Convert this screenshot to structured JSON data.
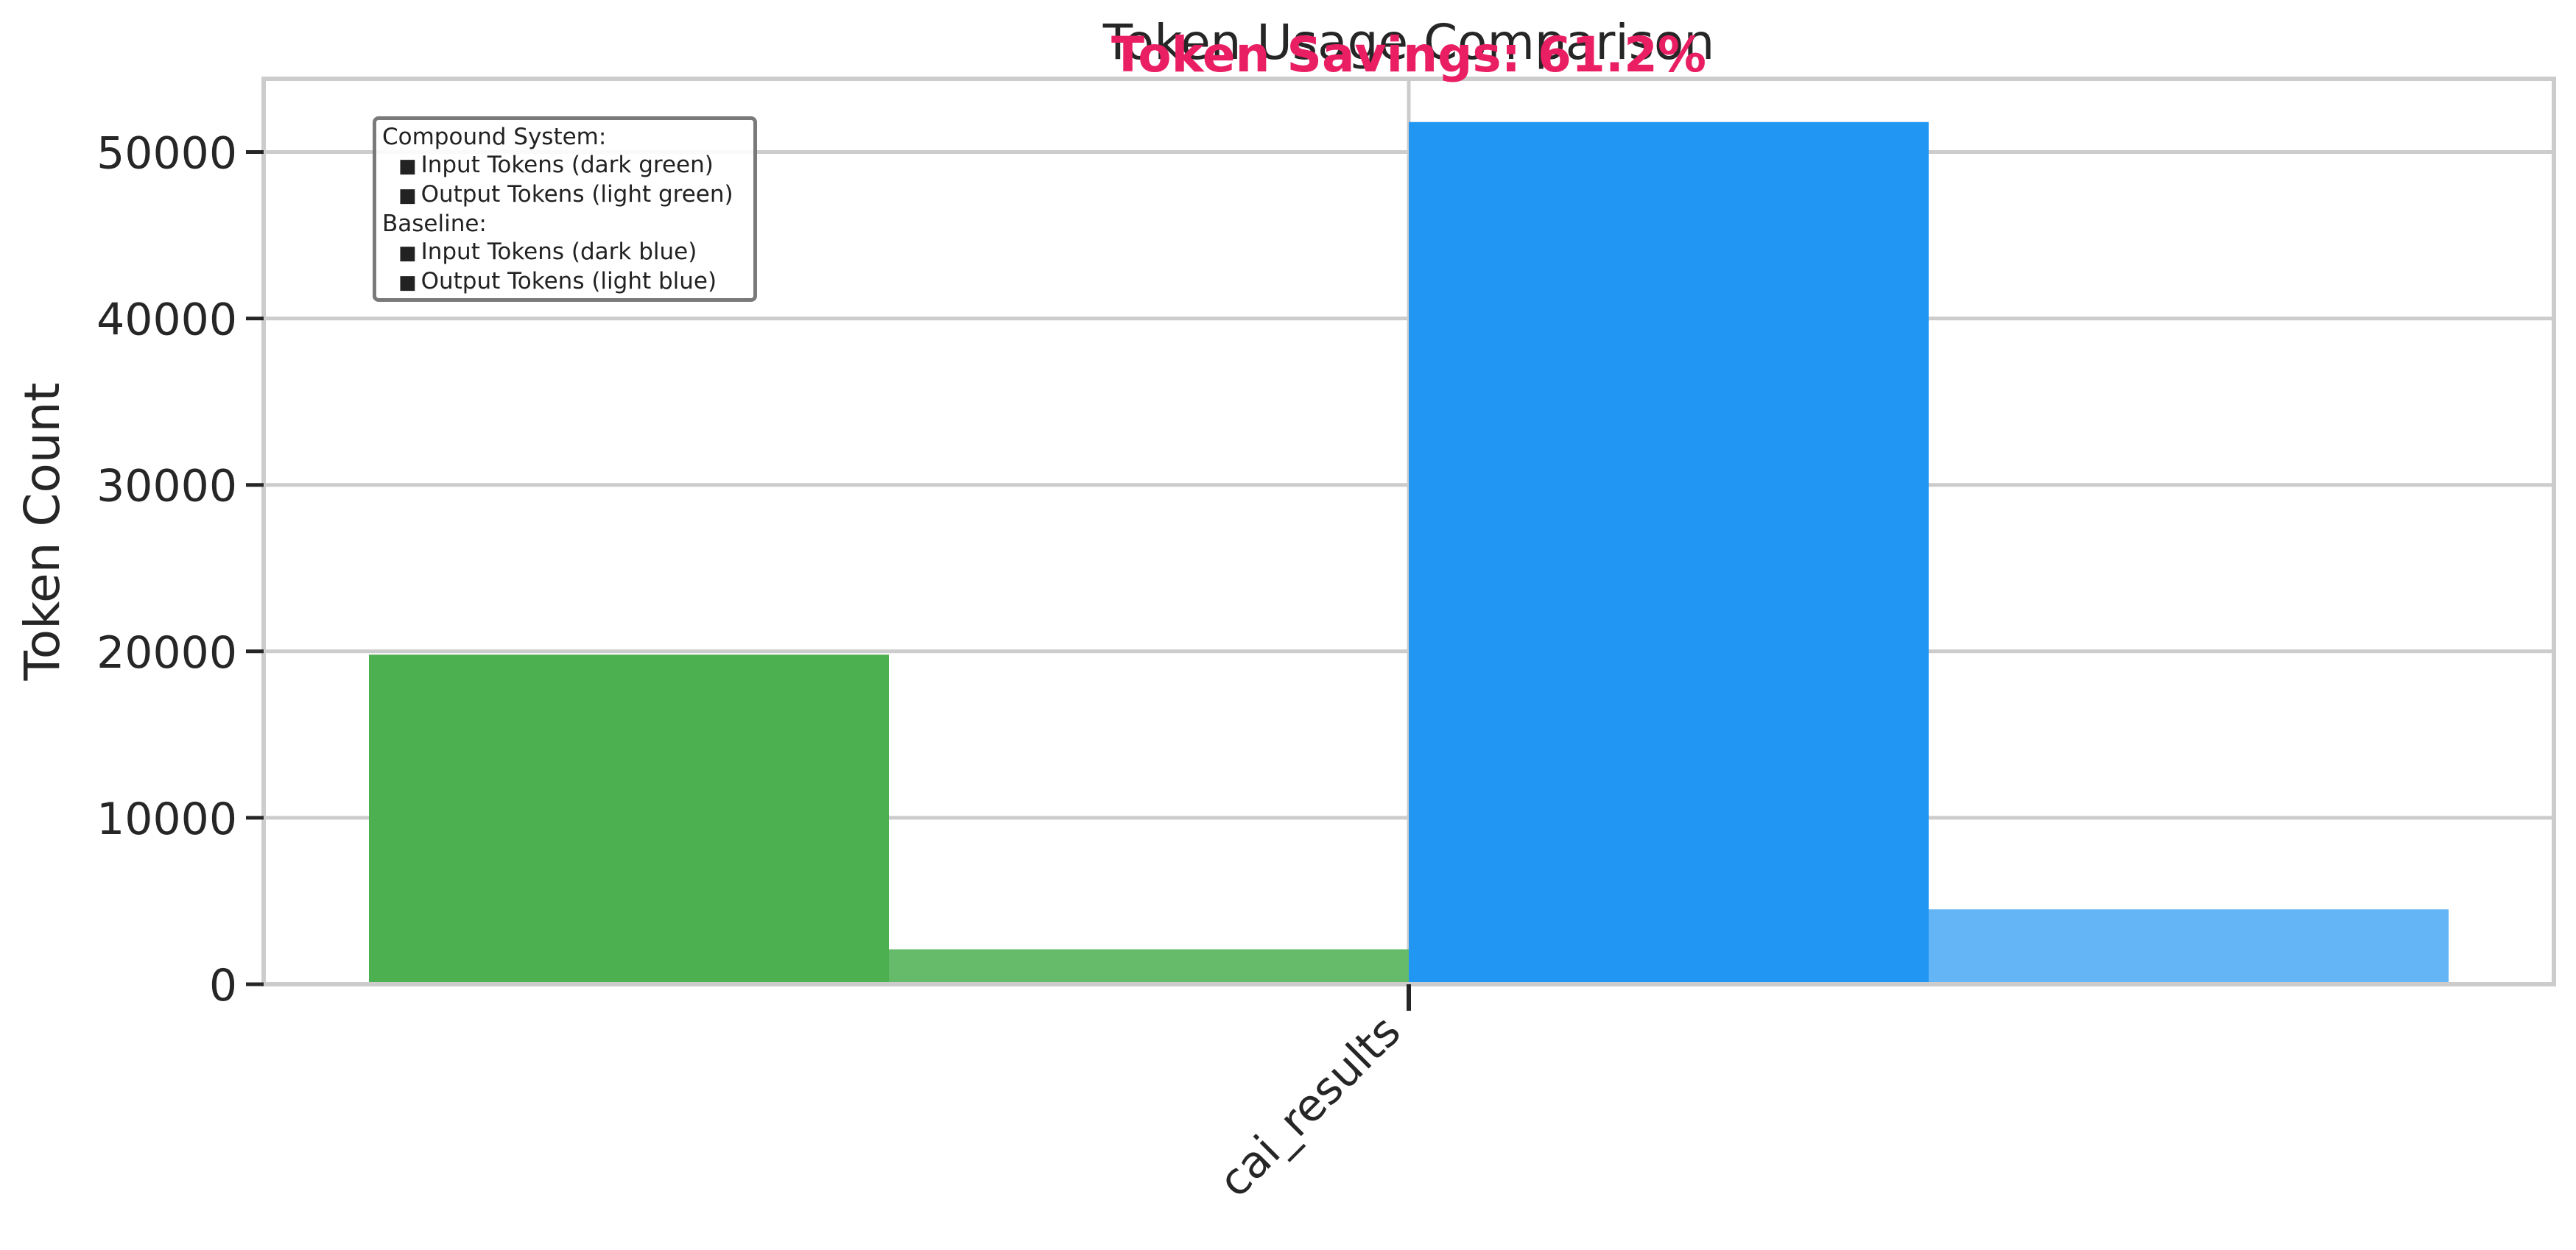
{
  "chart_data": {
    "type": "bar",
    "title": "Token Usage Comparison",
    "subtitle": "Token Savings: 61.2%",
    "xlabel": "",
    "ylabel": "Token Count",
    "categories": [
      "cai_results"
    ],
    "series": [
      {
        "name": "Input Tokens (dark green)",
        "group": "Compound System",
        "color": "#4caf50",
        "values": [
          19800
        ]
      },
      {
        "name": "Output Tokens (light green)",
        "group": "Compound System",
        "color": "#66bb6a",
        "values": [
          2100
        ]
      },
      {
        "name": "Input Tokens (dark blue)",
        "group": "Baseline",
        "color": "#2196f3",
        "values": [
          51800
        ]
      },
      {
        "name": "Output Tokens (light blue)",
        "group": "Baseline",
        "color": "#64b5f6",
        "values": [
          4500
        ]
      }
    ],
    "ylim": [
      0,
      54400
    ],
    "yticks": [
      0,
      10000,
      20000,
      30000,
      40000,
      50000
    ],
    "grid": true,
    "legend_placement": "top-left",
    "colors": {
      "subtitle": "#e91e63",
      "grid": "#cccccc",
      "text": "#262626"
    }
  },
  "legend": {
    "compound_header": "Compound System:",
    "compound_input": "Input Tokens (dark green)",
    "compound_output": "Output Tokens (light green)",
    "baseline_header": "Baseline:",
    "baseline_input": "Input Tokens (dark blue)",
    "baseline_output": "Output Tokens (light blue)",
    "marker": "■"
  }
}
